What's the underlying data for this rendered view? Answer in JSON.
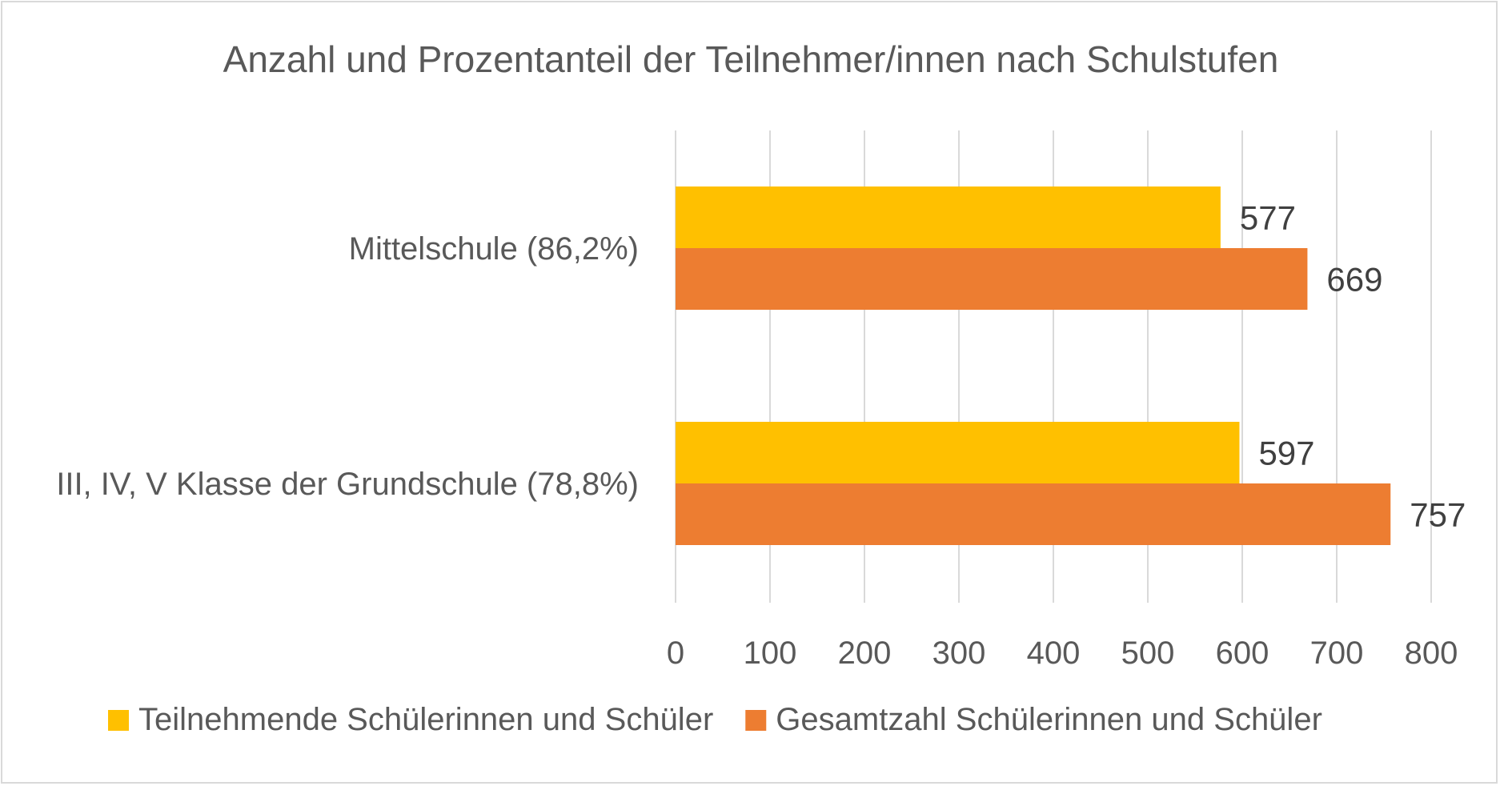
{
  "chart_data": {
    "type": "bar",
    "orientation": "horizontal",
    "title": "Anzahl und Prozentanteil der Teilnehmer/innen nach Schulstufen",
    "categories": [
      "Mittelschule (86,2%)",
      "III, IV, V Klasse der Grundschule (78,8%)"
    ],
    "series": [
      {
        "name": "Teilnehmende Schülerinnen und Schüler",
        "color": "#FFC000",
        "values": [
          577,
          597
        ]
      },
      {
        "name": "Gesamtzahl Schülerinnen und Schüler",
        "color": "#ED7D31",
        "values": [
          669,
          757
        ]
      }
    ],
    "xlim": [
      0,
      800
    ],
    "xticks": [
      0,
      100,
      200,
      300,
      400,
      500,
      600,
      700,
      800
    ],
    "xtick_labels": [
      "0",
      "100",
      "200",
      "300",
      "400",
      "500",
      "600",
      "700",
      "800"
    ],
    "grid": "vertical",
    "legend": "bottom",
    "data_labels": true
  }
}
